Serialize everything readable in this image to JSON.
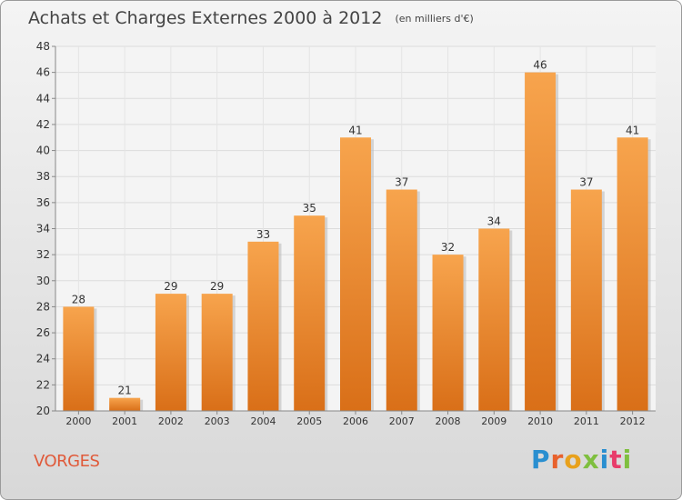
{
  "header": {
    "title": "Achats et Charges Externes 2000 à 2012",
    "unit": "(en milliers d'€)"
  },
  "footer": {
    "place": "VORGES",
    "logo": "Proxiti"
  },
  "colors": {
    "bar_light": "#f7a44d",
    "bar_dark": "#d96f18",
    "axis": "#888888",
    "place": "#e05a3a"
  },
  "chart_data": {
    "type": "bar",
    "title": "Achats et Charges Externes 2000 à 2012",
    "subtitle": "(en milliers d'€)",
    "categories": [
      "2000",
      "2001",
      "2002",
      "2003",
      "2004",
      "2005",
      "2006",
      "2007",
      "2008",
      "2009",
      "2010",
      "2011",
      "2012"
    ],
    "values": [
      28,
      21,
      29,
      29,
      33,
      35,
      41,
      37,
      32,
      34,
      46,
      37,
      41
    ],
    "ylim": [
      20,
      48
    ],
    "yticks": [
      20,
      22,
      24,
      26,
      28,
      30,
      32,
      34,
      36,
      38,
      40,
      42,
      44,
      46,
      48
    ],
    "grid": true,
    "data_labels": true
  }
}
